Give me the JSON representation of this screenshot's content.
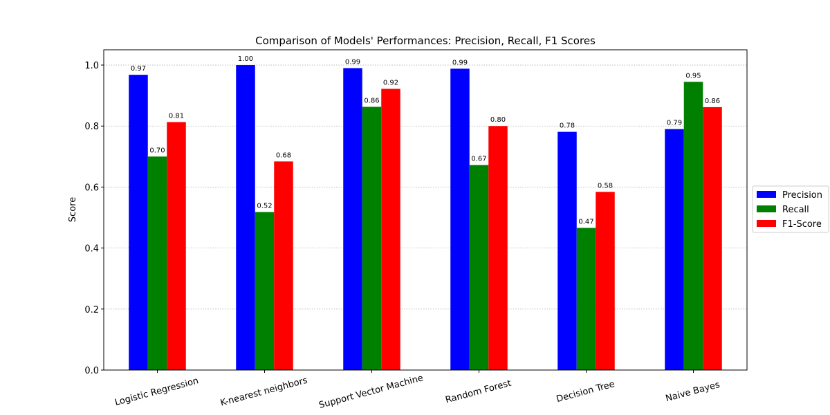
{
  "chart_data": {
    "type": "bar",
    "title": "Comparison of Models' Performances: Precision, Recall, F1 Scores",
    "xlabel": "",
    "ylabel": "Score",
    "ylim": [
      0,
      1.05
    ],
    "yticks": [
      "0.0",
      "0.2",
      "0.4",
      "0.6",
      "0.8",
      "1.0"
    ],
    "grid": "horizontal dotted",
    "legend_position": "right",
    "categories": [
      "Logistic Regression",
      "K-nearest neighbors",
      "Support Vector Machine",
      "Random Forest",
      "Decision Tree",
      "Naive Bayes"
    ],
    "series": [
      {
        "name": "Precision",
        "color": "#0000ff",
        "values": [
          0.968,
          1.0,
          0.99,
          0.988,
          0.781,
          0.79
        ],
        "labels": [
          "0.97",
          "1.00",
          "0.99",
          "0.99",
          "0.78",
          "0.79"
        ]
      },
      {
        "name": "Recall",
        "color": "#008000",
        "values": [
          0.7,
          0.518,
          0.863,
          0.672,
          0.466,
          0.945
        ],
        "labels": [
          "0.70",
          "0.52",
          "0.86",
          "0.67",
          "0.47",
          "0.95"
        ]
      },
      {
        "name": "F1-Score",
        "color": "#ff0000",
        "values": [
          0.813,
          0.684,
          0.922,
          0.8,
          0.584,
          0.862
        ],
        "labels": [
          "0.81",
          "0.68",
          "0.92",
          "0.80",
          "0.58",
          "0.86"
        ]
      }
    ]
  }
}
